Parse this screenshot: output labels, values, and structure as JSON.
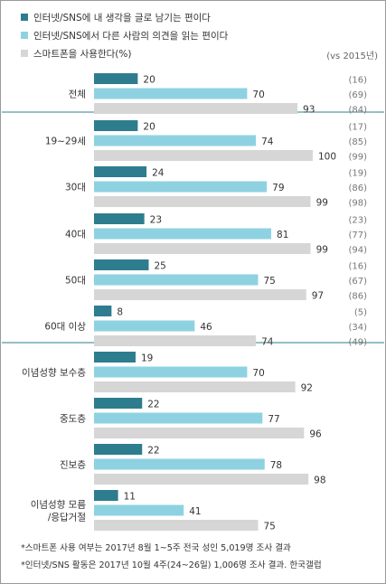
{
  "legend": [
    {
      "label": "인터넷/SNS에 내 생각을 글로 남기는 편이다",
      "color": "#2e7d8e"
    },
    {
      "label": "인터넷/SNS에서 다른 사람의 의견을 읽는 편이다",
      "color": "#8ed2e2"
    },
    {
      "label": "스마트폰을 사용한다(%)",
      "color": "#d6d6d6"
    }
  ],
  "vs_note": "(vs 2015년)",
  "footnotes": [
    "*스마트폰 사용 여부는 2017년 8월 1~5주 전국 성인 5,019명 조사 결과",
    "*인터넷/SNS 활동은 2017년 10월 4주(24~26일) 1,006명 조사 결과. 한국갤럽"
  ],
  "colors": {
    "write": "#2e7d8e",
    "read": "#8ed2e2",
    "phone": "#d6d6d6",
    "divider": "#2e7d8e",
    "text": "#333333",
    "prev": "#777777"
  },
  "chart_data": {
    "type": "bar",
    "orientation": "horizontal",
    "xlim": [
      0,
      100
    ],
    "series_names": [
      "인터넷/SNS에 내 생각을 글로 남기는 편이다",
      "인터넷/SNS에서 다른 사람의 의견을 읽는 편이다",
      "스마트폰을 사용한다(%)"
    ],
    "groups": [
      {
        "label": [
          "전체"
        ],
        "section": 0,
        "values": [
          20,
          70,
          93
        ],
        "prev": [
          "(16)",
          "(69)",
          "(84)"
        ]
      },
      {
        "label": [
          "19~29세"
        ],
        "section": 1,
        "values": [
          20,
          74,
          100
        ],
        "prev": [
          "(17)",
          "(85)",
          "(99)"
        ]
      },
      {
        "label": [
          "30대"
        ],
        "section": 1,
        "values": [
          24,
          79,
          99
        ],
        "prev": [
          "(19)",
          "(86)",
          "(98)"
        ]
      },
      {
        "label": [
          "40대"
        ],
        "section": 1,
        "values": [
          23,
          81,
          99
        ],
        "prev": [
          "(23)",
          "(77)",
          "(94)"
        ]
      },
      {
        "label": [
          "50대"
        ],
        "section": 1,
        "values": [
          25,
          75,
          97
        ],
        "prev": [
          "(16)",
          "(67)",
          "(86)"
        ]
      },
      {
        "label": [
          "60대 이상"
        ],
        "section": 1,
        "values": [
          8,
          46,
          74
        ],
        "prev": [
          "(5)",
          "(34)",
          "(49)"
        ]
      },
      {
        "label": [
          "이념성향 보수층"
        ],
        "section": 2,
        "values": [
          19,
          70,
          92
        ],
        "prev": [
          "",
          "",
          ""
        ]
      },
      {
        "label": [
          "중도층"
        ],
        "section": 2,
        "values": [
          22,
          77,
          96
        ],
        "prev": [
          "",
          "",
          ""
        ]
      },
      {
        "label": [
          "진보층"
        ],
        "section": 2,
        "values": [
          22,
          78,
          98
        ],
        "prev": [
          "",
          "",
          ""
        ]
      },
      {
        "label": [
          "이념성향 모름",
          "/응답거절"
        ],
        "section": 2,
        "values": [
          11,
          41,
          75
        ],
        "prev": [
          "",
          "",
          ""
        ]
      }
    ]
  }
}
